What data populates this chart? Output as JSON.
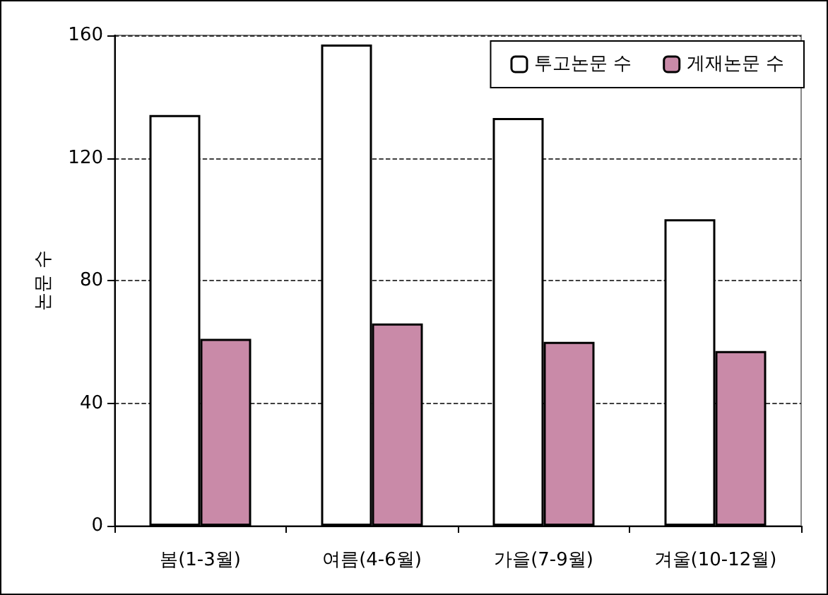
{
  "chart_data": {
    "type": "bar",
    "ylabel": "논문 수",
    "categories": [
      "봄(1-3월)",
      "여름(4-6월)",
      "가을(7-9월)",
      "겨울(10-12월)"
    ],
    "series": [
      {
        "name": "투고논문 수",
        "color": "#ffffff",
        "values": [
          134,
          157,
          133,
          100
        ]
      },
      {
        "name": "게재논문 수",
        "color": "#c98aa8",
        "values": [
          61,
          66,
          60,
          57
        ]
      }
    ],
    "ylim": [
      0,
      160
    ],
    "yticks": [
      0,
      40,
      80,
      120,
      160
    ],
    "grid": "y",
    "legend": "top right"
  }
}
